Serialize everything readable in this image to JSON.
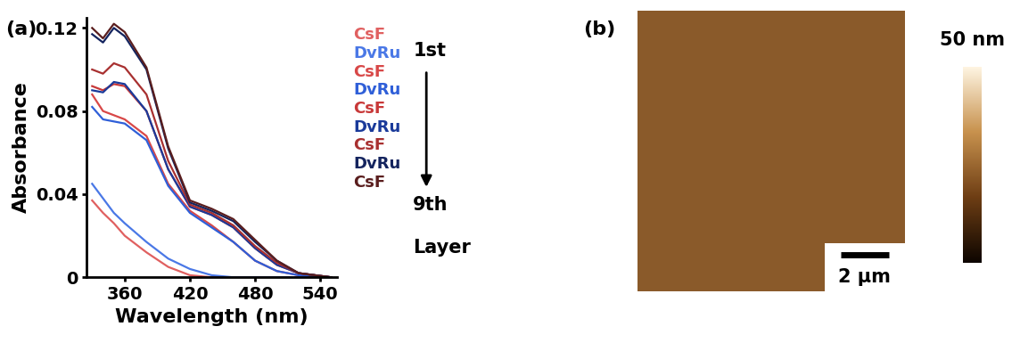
{
  "chart_data": {
    "type": "line",
    "panel_label": "(a)",
    "x_label": "Wavelength (nm)",
    "y_label": "Absorbance",
    "x": [
      330,
      340,
      350,
      360,
      380,
      400,
      420,
      440,
      460,
      480,
      500,
      520,
      550
    ],
    "series": [
      {
        "name": "CsF",
        "color": "#e06060",
        "values": [
          0.037,
          0.031,
          0.026,
          0.02,
          0.012,
          0.005,
          0.001,
          0,
          0,
          0,
          0,
          0,
          0
        ]
      },
      {
        "name": "DvRu",
        "color": "#4a78e6",
        "values": [
          0.045,
          0.038,
          0.031,
          0.026,
          0.017,
          0.009,
          0.004,
          0.001,
          0,
          0,
          0,
          0,
          0
        ]
      },
      {
        "name": "CsF",
        "color": "#d84848",
        "values": [
          0.088,
          0.08,
          0.078,
          0.076,
          0.068,
          0.045,
          0.032,
          0.025,
          0.017,
          0.008,
          0.003,
          0.001,
          0
        ]
      },
      {
        "name": "DvRu",
        "color": "#2f5fd8",
        "values": [
          0.082,
          0.076,
          0.075,
          0.074,
          0.066,
          0.044,
          0.031,
          0.024,
          0.017,
          0.008,
          0.003,
          0.001,
          0
        ]
      },
      {
        "name": "CsF",
        "color": "#c83838",
        "values": [
          0.092,
          0.09,
          0.093,
          0.092,
          0.08,
          0.052,
          0.034,
          0.03,
          0.024,
          0.014,
          0.006,
          0.002,
          0
        ]
      },
      {
        "name": "DvRu",
        "color": "#1a3a9a",
        "values": [
          0.09,
          0.089,
          0.094,
          0.093,
          0.08,
          0.052,
          0.034,
          0.03,
          0.024,
          0.014,
          0.006,
          0.002,
          0
        ]
      },
      {
        "name": "CsF",
        "color": "#a83030",
        "values": [
          0.1,
          0.098,
          0.103,
          0.101,
          0.088,
          0.056,
          0.035,
          0.031,
          0.025,
          0.015,
          0.007,
          0.002,
          0
        ]
      },
      {
        "name": "DvRu",
        "color": "#14245e",
        "values": [
          0.117,
          0.113,
          0.12,
          0.116,
          0.1,
          0.062,
          0.036,
          0.032,
          0.027,
          0.017,
          0.008,
          0.002,
          0
        ]
      },
      {
        "name": "CsF",
        "color": "#5a1e1e",
        "values": [
          0.12,
          0.115,
          0.122,
          0.118,
          0.101,
          0.063,
          0.037,
          0.033,
          0.028,
          0.018,
          0.008,
          0.002,
          0
        ]
      }
    ],
    "xlim": [
      325,
      555
    ],
    "xticks": [
      360,
      420,
      480,
      540
    ],
    "ylim": [
      0,
      0.125
    ],
    "yticks": [
      0,
      0.04,
      0.08,
      0.12
    ],
    "legend": "upper left",
    "annotations": [
      "1st",
      "9th",
      "Layer"
    ]
  },
  "image_panel": {
    "panel_label": "(b)",
    "scale_bar": "2 µm",
    "colorbar_label": "50 nm"
  }
}
